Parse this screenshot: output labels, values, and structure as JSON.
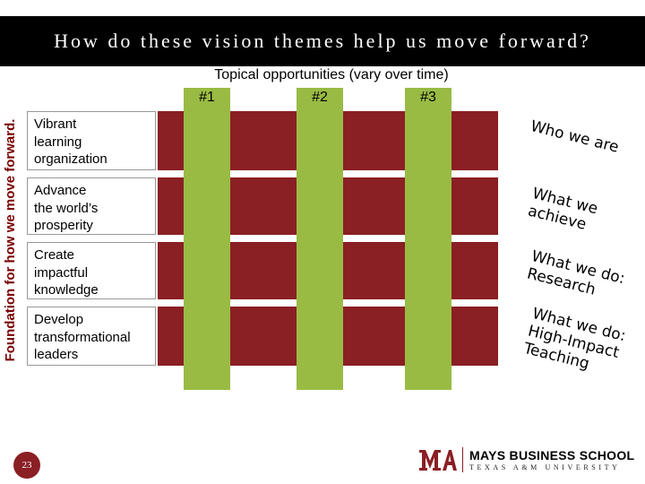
{
  "title": "How do these vision themes help us move forward?",
  "side_label": "Foundation for how we move forward.",
  "topical_label": "Topical opportunities (vary over time)",
  "columns": [
    "#1",
    "#2",
    "#3"
  ],
  "rows": [
    {
      "lines": [
        "Vibrant",
        "learning",
        "organization"
      ]
    },
    {
      "lines": [
        "Advance",
        "the world’s",
        "prosperity"
      ]
    },
    {
      "lines": [
        "Create",
        "impactful",
        "knowledge"
      ]
    },
    {
      "lines": [
        "Develop",
        "transformational",
        "leaders"
      ]
    }
  ],
  "right_notes": [
    {
      "lines": [
        "Who we are"
      ]
    },
    {
      "lines": [
        "What we",
        "achieve"
      ]
    },
    {
      "lines": [
        "What we do:",
        "Research"
      ]
    },
    {
      "lines": [
        "What we do:",
        "High-Impact",
        "Teaching"
      ]
    }
  ],
  "page_number": "23",
  "logo": {
    "name": "MAYS BUSINESS SCHOOL",
    "subtitle": "TEXAS A&M UNIVERSITY"
  },
  "colors": {
    "maroon": "#8a1f24",
    "green": "#99bb44",
    "title_bar": "#000000"
  }
}
